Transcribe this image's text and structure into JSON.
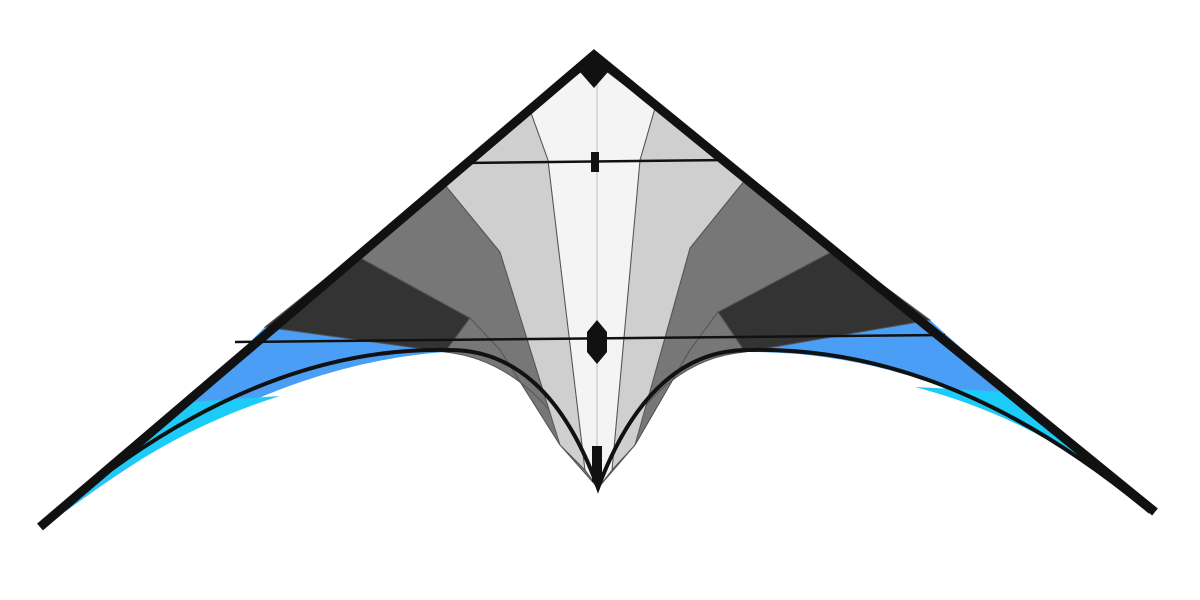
{
  "image": {
    "subject": "delta-stunt-kite",
    "background_color": "#ffffff"
  },
  "colors": {
    "frame": "#111111",
    "nose_panel": "#f4f4f4",
    "light_gray_panel": "#cfcfcf",
    "mid_gray_panel": "#777777",
    "dark_gray_panel": "#333333",
    "blue_panel": "#4a9ef5",
    "cyan_panel": "#1ccbf7",
    "panel_outline": "#555555"
  }
}
